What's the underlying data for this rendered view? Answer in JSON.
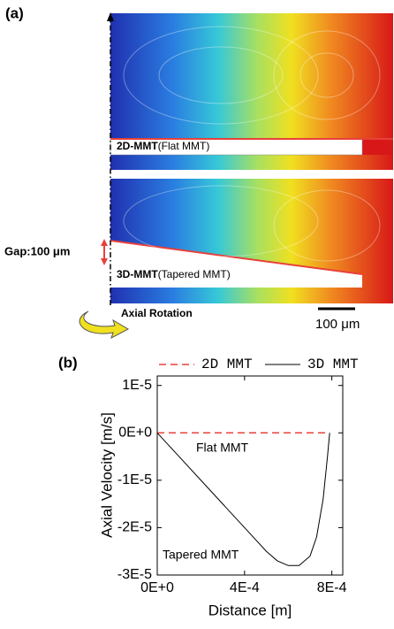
{
  "panel_a": {
    "label": "(a)",
    "flat_name": "2D-MMT",
    "flat_note": "(Flat MMT)",
    "tapered_name": "3D-MMT",
    "tapered_note": "(Tapered MMT)",
    "gap": "Gap:100 μm",
    "rotation": "Axial Rotation",
    "scale_bar": "100 μm"
  },
  "chart_data": {
    "type": "line",
    "label": "(b)",
    "xlabel": "Distance [m]",
    "ylabel": "Axial Velocity [m/s]",
    "xlim": [
      0,
      0.00085
    ],
    "ylim": [
      -3e-05,
      1.2e-05
    ],
    "xticks": [
      {
        "value": 0,
        "label": "0E+0"
      },
      {
        "value": 0.0004,
        "label": "4E-4"
      },
      {
        "value": 0.0008,
        "label": "8E-4"
      }
    ],
    "yticks": [
      {
        "value": 1e-05,
        "label": "1E-5"
      },
      {
        "value": 0,
        "label": "0E+0"
      },
      {
        "value": -1e-05,
        "label": "-1E-5"
      },
      {
        "value": -2e-05,
        "label": "-2E-5"
      },
      {
        "value": -3e-05,
        "label": "-3E-5"
      }
    ],
    "annotations": [
      "Flat MMT",
      "Tapered MMT"
    ],
    "series": [
      {
        "name": "2D MMT",
        "color": "#e8413a",
        "dash": true,
        "x": [
          0,
          0.00079
        ],
        "values": [
          0,
          0
        ]
      },
      {
        "name": "3D MMT",
        "color": "#000000",
        "dash": false,
        "x": [
          0,
          5e-05,
          0.0001,
          0.0002,
          0.0003,
          0.0004,
          0.00045,
          0.0005,
          0.00055,
          0.0006,
          0.00065,
          0.0007,
          0.00073,
          0.00076,
          0.00078,
          0.00079
        ],
        "values": [
          0,
          -2.5e-06,
          -5e-06,
          -1e-05,
          -1.5e-05,
          -2e-05,
          -2.25e-05,
          -2.5e-05,
          -2.7e-05,
          -2.8e-05,
          -2.8e-05,
          -2.6e-05,
          -2.2e-05,
          -1.4e-05,
          -5e-06,
          0
        ]
      }
    ]
  }
}
